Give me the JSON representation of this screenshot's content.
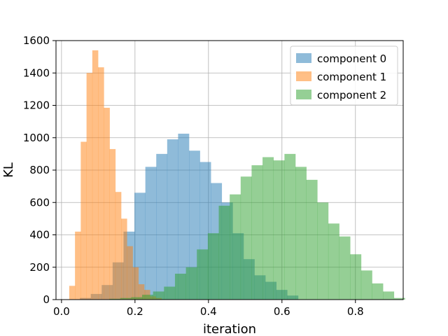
{
  "chart_data": {
    "type": "bar",
    "subtype": "overlapping-histogram",
    "xlabel": "iteration",
    "ylabel": "KL",
    "xlim": [
      -0.015,
      0.93
    ],
    "ylim": [
      0,
      1600
    ],
    "xticks": [
      0.0,
      0.2,
      0.4,
      0.6,
      0.8
    ],
    "xtick_labels": [
      "0.0",
      "0.2",
      "0.4",
      "0.6",
      "0.8"
    ],
    "yticks": [
      0,
      200,
      400,
      600,
      800,
      1000,
      1200,
      1400,
      1600
    ],
    "ytick_labels": [
      "0",
      "200",
      "400",
      "600",
      "800",
      "1000",
      "1200",
      "1400",
      "1600"
    ],
    "grid": true,
    "legend": "top-right",
    "series": [
      {
        "name": "component 0",
        "color": "#1f77b4",
        "alpha": 0.5,
        "bin_start": 0.05,
        "bin_width": 0.0297,
        "values": [
          10,
          35,
          90,
          230,
          420,
          660,
          820,
          900,
          990,
          1025,
          920,
          850,
          720,
          600,
          410,
          250,
          150,
          110,
          60,
          25
        ]
      },
      {
        "name": "component 1",
        "color": "#ff7f0e",
        "alpha": 0.5,
        "bin_start": 0.021,
        "bin_width": 0.0157,
        "values": [
          85,
          420,
          975,
          1400,
          1540,
          1435,
          1185,
          930,
          665,
          500,
          330,
          200,
          95,
          60,
          20,
          10
        ]
      },
      {
        "name": "component 2",
        "color": "#2ca02c",
        "alpha": 0.5,
        "bin_start": 0.13,
        "bin_width": 0.0298,
        "values": [
          5,
          10,
          15,
          30,
          50,
          80,
          160,
          200,
          310,
          410,
          580,
          650,
          760,
          830,
          880,
          860,
          900,
          820,
          740,
          600,
          470,
          390,
          280,
          180,
          100,
          50,
          10
        ]
      }
    ]
  }
}
